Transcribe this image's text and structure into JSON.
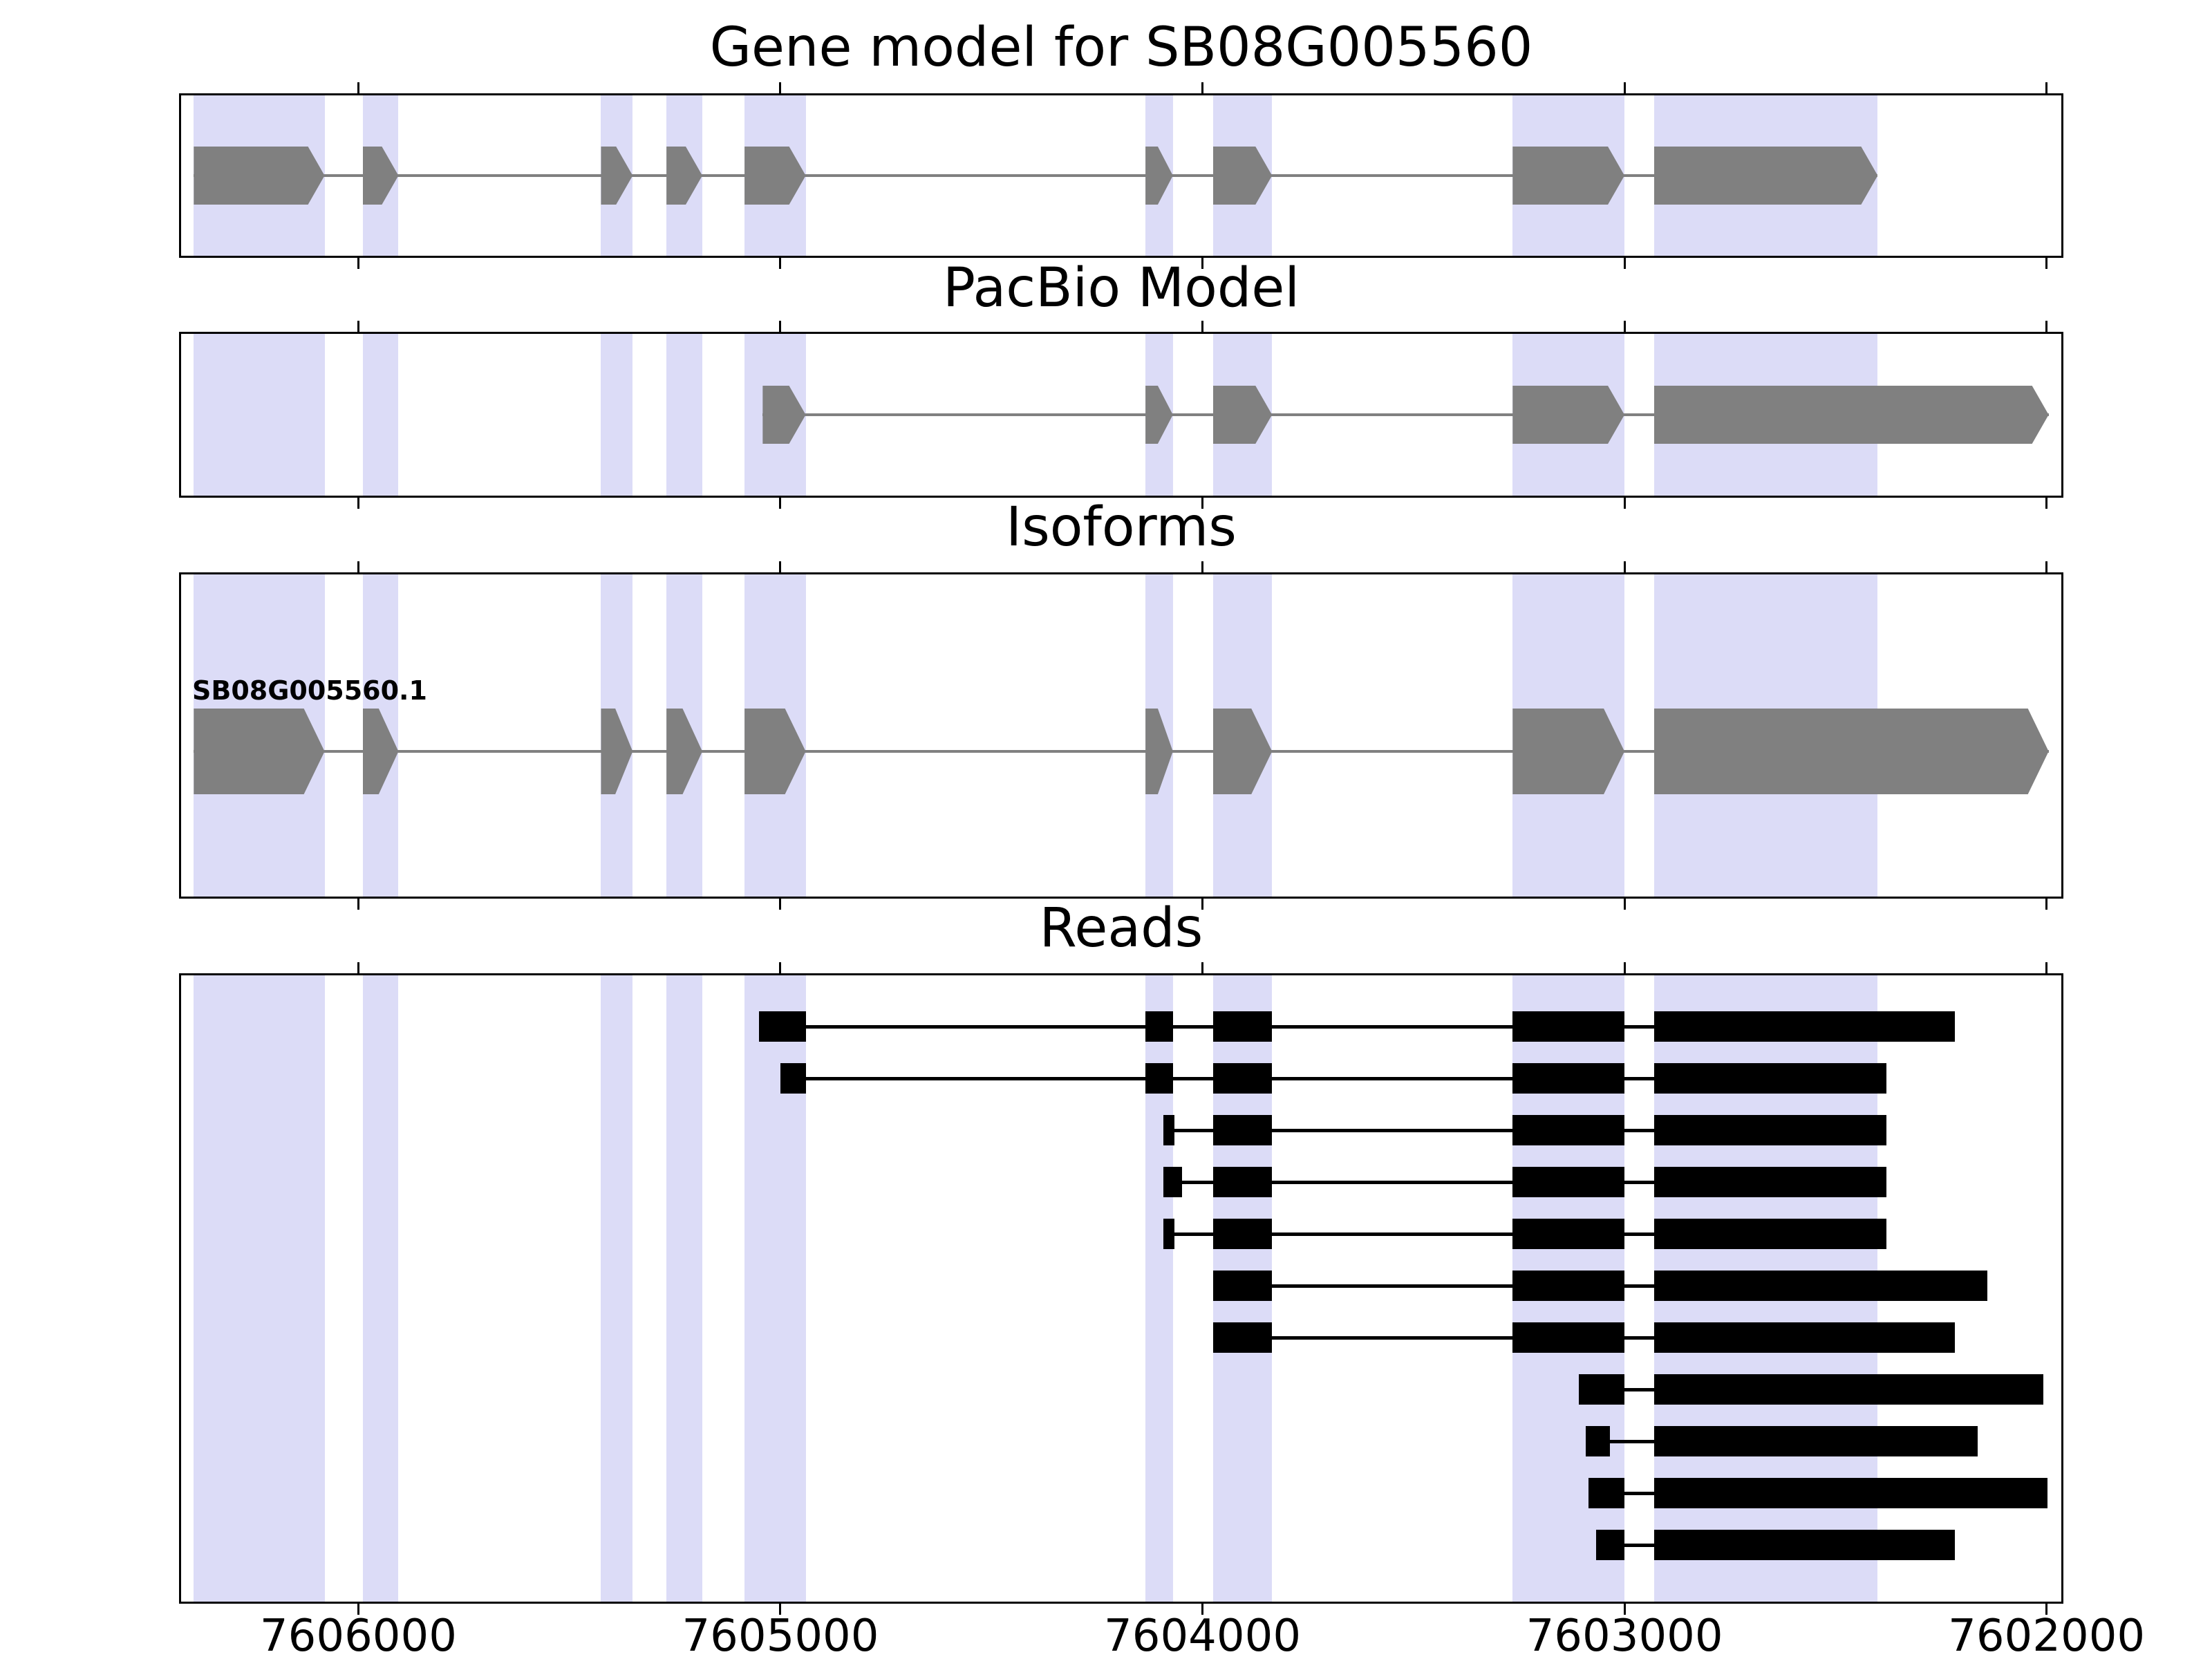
{
  "figure": {
    "background": "#ffffff",
    "colors": {
      "exon_fill": "#808080",
      "intron_line": "#808080",
      "read_fill": "#000000",
      "highlight_band": "#dcdcf7",
      "axis_line": "#000000",
      "text": "#000000"
    }
  },
  "chart_data": {
    "type": "genome-track-plot",
    "description": "Gene model browser view with four stacked tracks sharing one reversed genomic x-axis",
    "x_axis": {
      "reversed": true,
      "left_coordinate": 7606420,
      "right_coordinate": 7601965,
      "ticks": [
        7606000,
        7605000,
        7604000,
        7603000,
        7602000
      ],
      "tick_labels": [
        "7606000",
        "7605000",
        "7604000",
        "7603000",
        "7602000"
      ]
    },
    "highlight_regions": [
      [
        7606390,
        7606080
      ],
      [
        7605990,
        7605905
      ],
      [
        7605425,
        7605350
      ],
      [
        7605270,
        7605185
      ],
      [
        7605085,
        7604940
      ],
      [
        7604135,
        7604070
      ],
      [
        7603975,
        7603835
      ],
      [
        7603265,
        7603000
      ],
      [
        7602930,
        7602400
      ]
    ],
    "panels": [
      {
        "title": "Gene model for SB08G005560",
        "kind": "gene",
        "models": [
          {
            "label": "",
            "exons": [
              [
                7606390,
                7606080
              ],
              [
                7605990,
                7605905
              ],
              [
                7605425,
                7605350
              ],
              [
                7605270,
                7605185
              ],
              [
                7605085,
                7604940
              ],
              [
                7604135,
                7604070
              ],
              [
                7603975,
                7603835
              ],
              [
                7603265,
                7603000
              ],
              [
                7602930,
                7602400
              ]
            ]
          }
        ]
      },
      {
        "title": "PacBio Model",
        "kind": "gene",
        "models": [
          {
            "label": "",
            "exons": [
              [
                7605042,
                7604940
              ],
              [
                7604135,
                7604070
              ],
              [
                7603975,
                7603835
              ],
              [
                7603265,
                7603000
              ],
              [
                7602930,
                7601995
              ]
            ]
          }
        ]
      },
      {
        "title": "Isoforms",
        "kind": "gene",
        "models": [
          {
            "label": "SB08G005560.1",
            "exons": [
              [
                7606390,
                7606080
              ],
              [
                7605990,
                7605905
              ],
              [
                7605425,
                7605350
              ],
              [
                7605270,
                7605185
              ],
              [
                7605085,
                7604940
              ],
              [
                7604135,
                7604070
              ],
              [
                7603975,
                7603835
              ],
              [
                7603265,
                7603000
              ],
              [
                7602930,
                7601995
              ]
            ]
          }
        ]
      },
      {
        "title": "Reads",
        "kind": "reads",
        "reads": [
          {
            "blocks": [
              [
                7605050,
                7604940
              ],
              [
                7604135,
                7604070
              ],
              [
                7603975,
                7603835
              ],
              [
                7603265,
                7603000
              ],
              [
                7602930,
                7602218
              ]
            ]
          },
          {
            "blocks": [
              [
                7605000,
                7604940
              ],
              [
                7604135,
                7604070
              ],
              [
                7603975,
                7603835
              ],
              [
                7603265,
                7603000
              ],
              [
                7602930,
                7602380
              ]
            ]
          },
          {
            "blocks": [
              [
                7604092,
                7604066
              ],
              [
                7603975,
                7603835
              ],
              [
                7603265,
                7603000
              ],
              [
                7602930,
                7602380
              ]
            ]
          },
          {
            "blocks": [
              [
                7604092,
                7604048
              ],
              [
                7603975,
                7603835
              ],
              [
                7603265,
                7603000
              ],
              [
                7602930,
                7602380
              ]
            ]
          },
          {
            "blocks": [
              [
                7604092,
                7604066
              ],
              [
                7603975,
                7603835
              ],
              [
                7603265,
                7603000
              ],
              [
                7602930,
                7602380
              ]
            ]
          },
          {
            "blocks": [
              [
                7603975,
                7603835
              ],
              [
                7603265,
                7603000
              ],
              [
                7602930,
                7602140
              ]
            ]
          },
          {
            "blocks": [
              [
                7603975,
                7603835
              ],
              [
                7603265,
                7603000
              ],
              [
                7602930,
                7602218
              ]
            ]
          },
          {
            "blocks": [
              [
                7603108,
                7603000
              ],
              [
                7602930,
                7602008
              ]
            ]
          },
          {
            "blocks": [
              [
                7603092,
                7603035
              ],
              [
                7602930,
                7602163
              ]
            ]
          },
          {
            "blocks": [
              [
                7603085,
                7603000
              ],
              [
                7602930,
                7601998
              ]
            ]
          },
          {
            "blocks": [
              [
                7603068,
                7603000
              ],
              [
                7602930,
                7602218
              ]
            ]
          }
        ]
      }
    ]
  }
}
